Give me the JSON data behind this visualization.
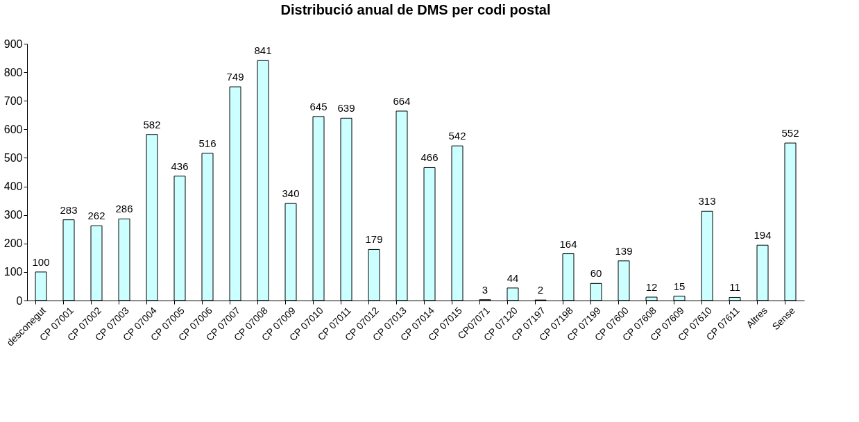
{
  "chart_data": {
    "type": "bar",
    "title": "Distribució anual de DMS per codi postal",
    "categories": [
      "desconegut",
      "CP 07001",
      "CP 07002",
      "CP 07003",
      "CP 07004",
      "CP 07005",
      "CP 07006",
      "CP 07007",
      "CP 07008",
      "CP 07009",
      "CP 07010",
      "CP 07011",
      "CP 07012",
      "CP 07013",
      "CP 07014",
      "CP 07015",
      "CP07071",
      "CP 07120",
      "CP 07197",
      "CP 07198",
      "CP 07199",
      "CP 07600",
      "CP 07608",
      "CP 07609",
      "CP 07610",
      "CP 07611",
      "Altres",
      "Sense"
    ],
    "values": [
      100,
      283,
      262,
      286,
      582,
      436,
      516,
      749,
      841,
      340,
      645,
      639,
      179,
      664,
      466,
      542,
      3,
      44,
      2,
      164,
      60,
      139,
      12,
      15,
      313,
      11,
      194,
      552
    ],
    "color": "#ccffff",
    "ylim": [
      0,
      900
    ],
    "yticks": [
      0,
      100,
      200,
      300,
      400,
      500,
      600,
      700,
      800,
      900
    ],
    "data_labels": true,
    "grid": false
  }
}
